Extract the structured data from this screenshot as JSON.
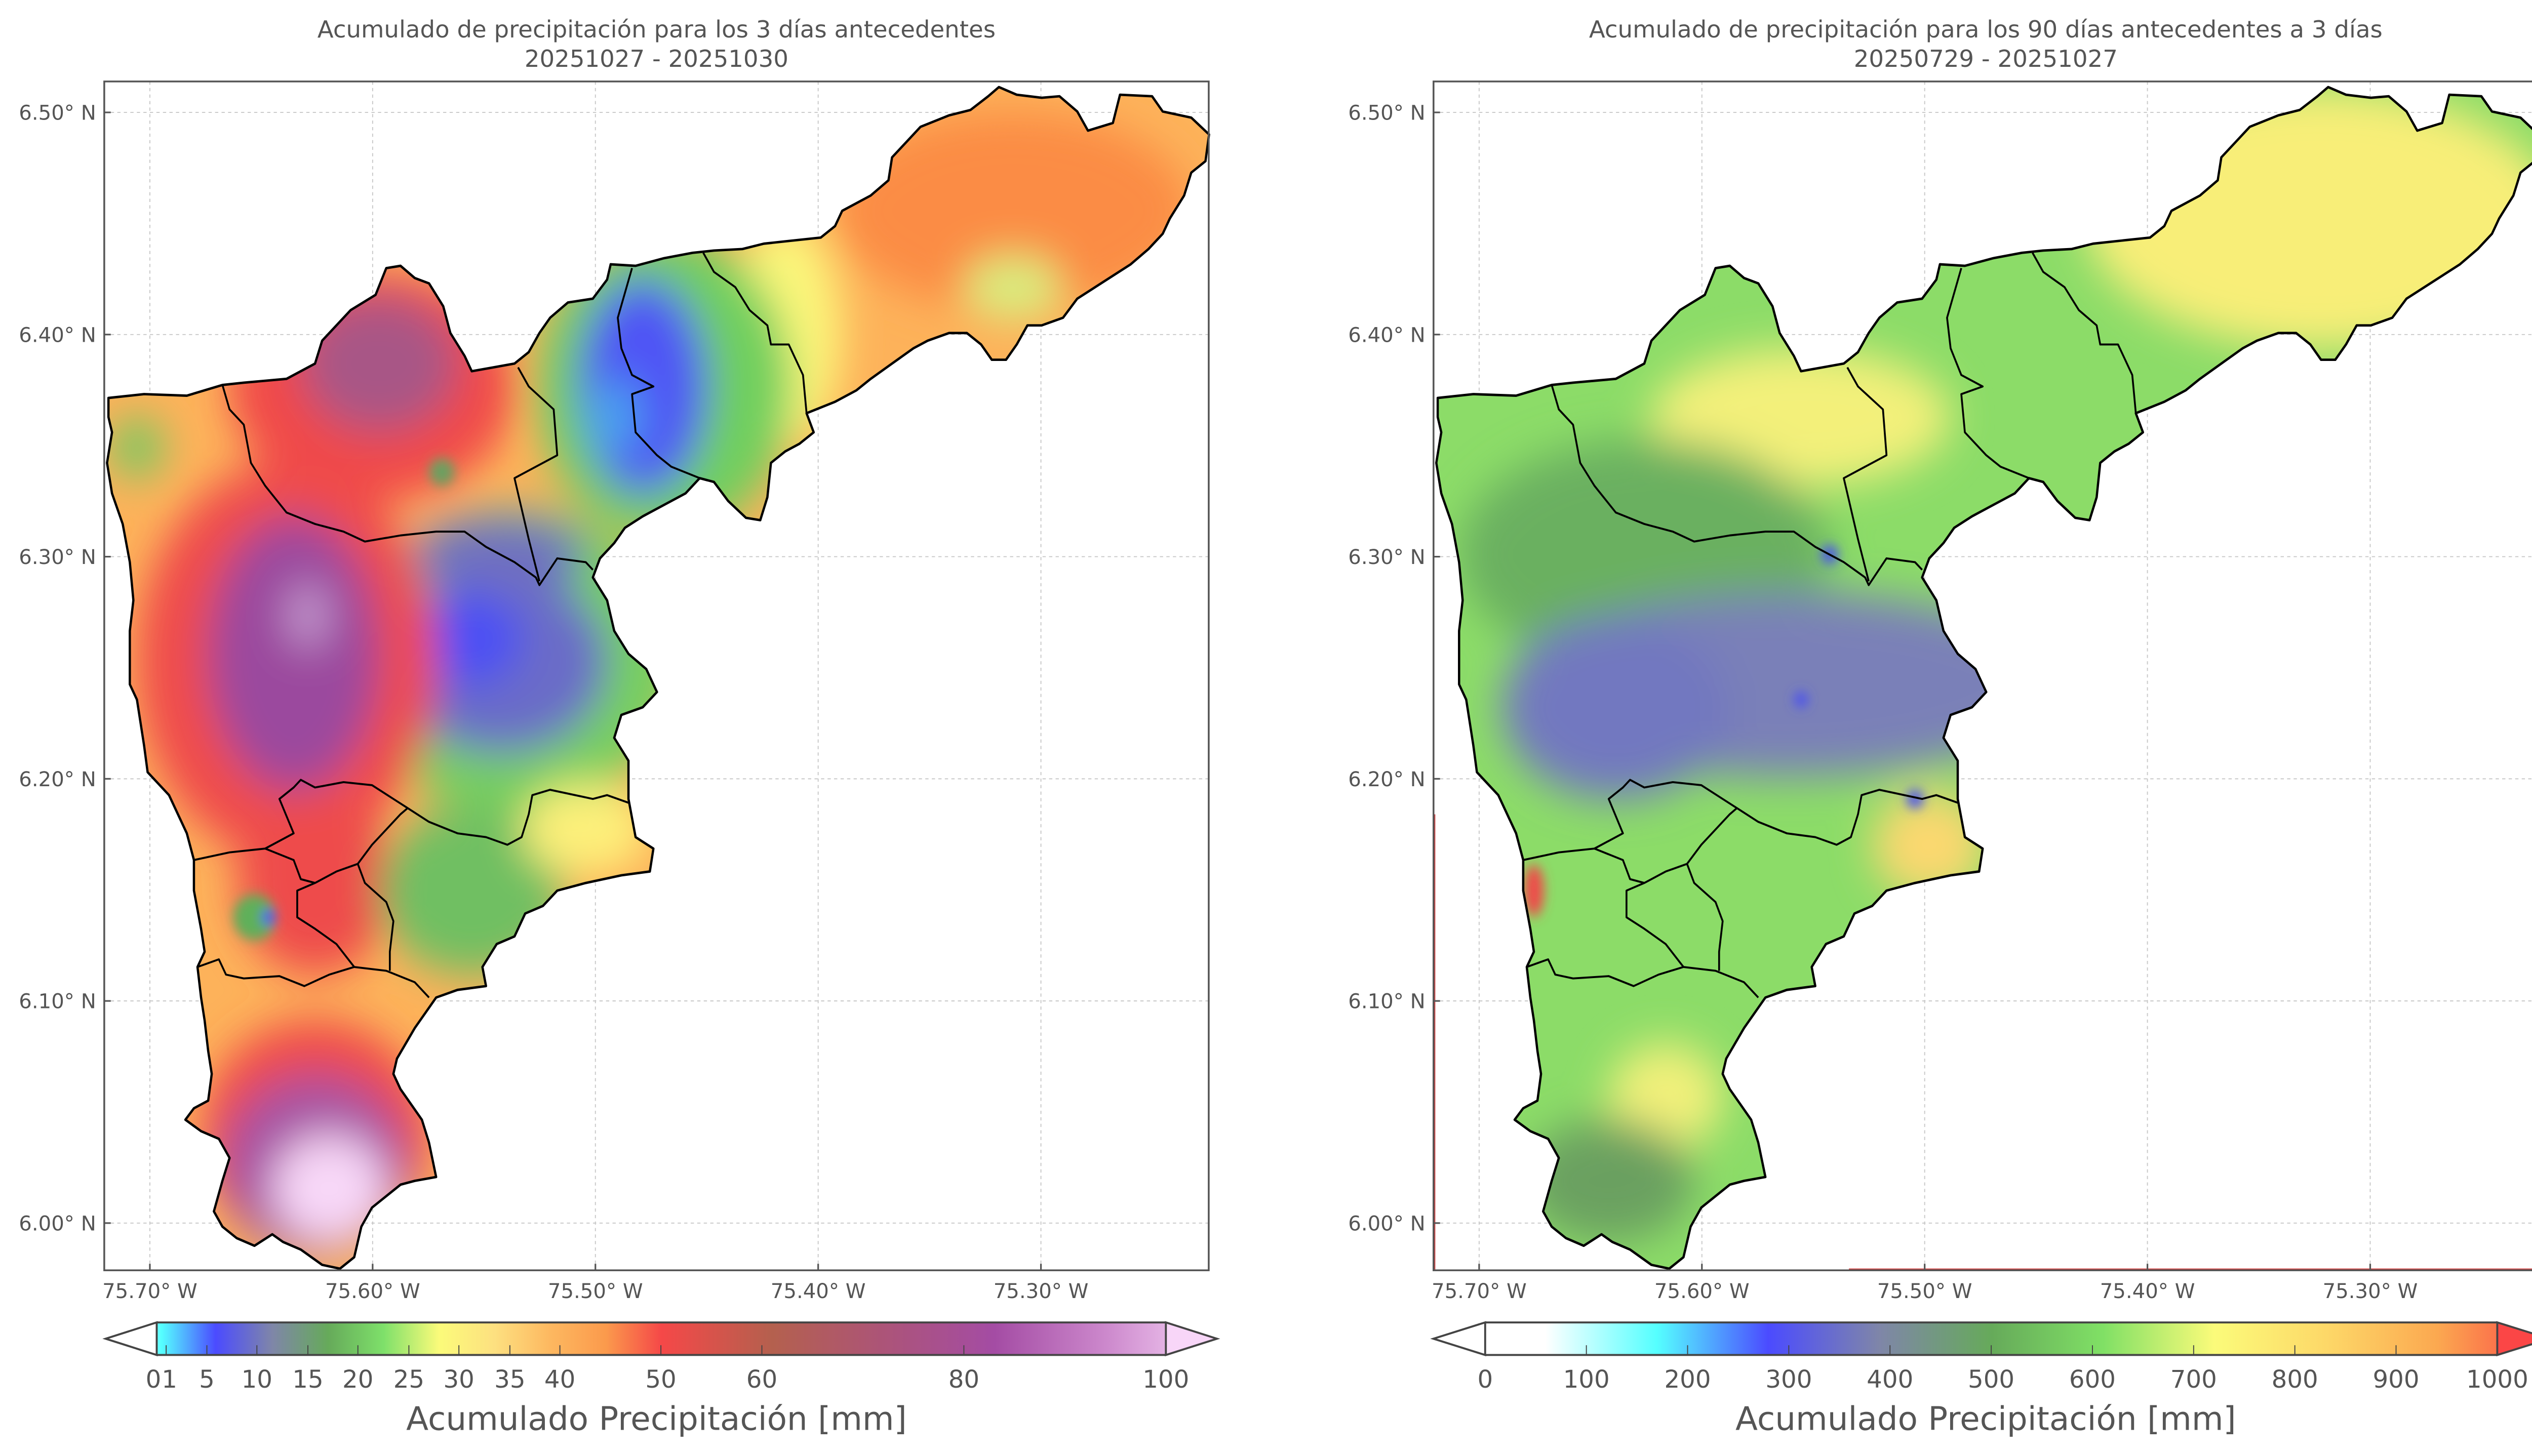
{
  "panels": [
    {
      "title": "Acumulado de precipitación para los 3 días antecedentes",
      "date_range": "20251027 - 20251030",
      "lat_ticks": [
        "6.50° N",
        "6.40° N",
        "6.30° N",
        "6.20° N",
        "6.10° N",
        "6.00° N"
      ],
      "lon_ticks": [
        "75.70° W",
        "75.60° W",
        "75.50° W",
        "75.40° W",
        "75.30° W"
      ],
      "colorbar": {
        "label": "Acumulado Precipitación [mm]",
        "ticks": [
          "0",
          "1",
          "5",
          "10",
          "15",
          "20",
          "25",
          "30",
          "35",
          "40",
          "50",
          "60",
          "80",
          "100"
        ]
      }
    },
    {
      "title": "Acumulado de precipitación para los 90 días antecedentes a 3 días",
      "date_range": "20250729 - 20251027",
      "lat_ticks": [
        "6.50° N",
        "6.40° N",
        "6.30° N",
        "6.20° N",
        "6.10° N",
        "6.00° N"
      ],
      "lon_ticks": [
        "75.70° W",
        "75.60° W",
        "75.50° W",
        "75.40° W",
        "75.30° W"
      ],
      "colorbar": {
        "label": "Acumulado Precipitación [mm]",
        "ticks": [
          "0",
          "100",
          "200",
          "300",
          "400",
          "500",
          "600",
          "700",
          "800",
          "900",
          "1000"
        ]
      }
    }
  ],
  "colors": {
    "text": "#555555",
    "outline": "#000000"
  }
}
